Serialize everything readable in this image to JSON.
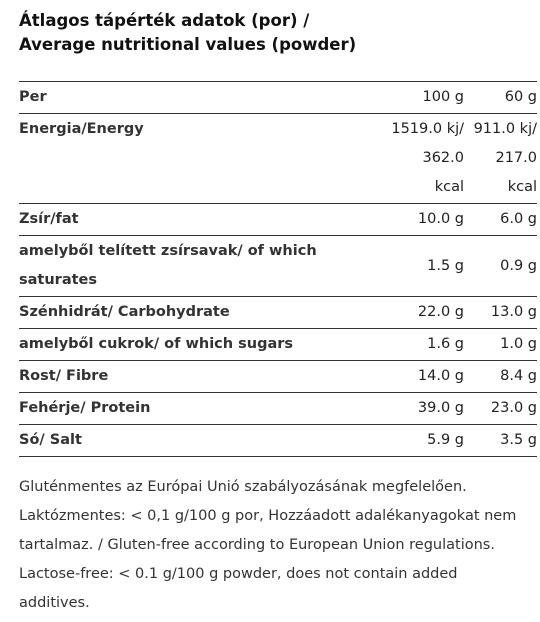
{
  "header": {
    "title_lines": [
      "Átlagos tápérték adatok (por) /",
      "Average nutritional values (powder)"
    ]
  },
  "table": {
    "rows": [
      {
        "label": "Per",
        "cells": [
          [
            "100 g"
          ],
          [
            "60 g"
          ]
        ]
      },
      {
        "label": "Energia/Energy",
        "cells": [
          [
            "1519.0 kj/",
            "362.0",
            "kcal"
          ],
          [
            "911.0 kj/",
            "217.0",
            "kcal"
          ]
        ]
      },
      {
        "label": "Zsír/fat",
        "cells": [
          [
            "10.0 g"
          ],
          [
            "6.0 g"
          ]
        ]
      },
      {
        "label": "amelyből telített zsírsavak/ of which saturates",
        "cells": [
          [
            "1.5 g"
          ],
          [
            "0.9 g"
          ]
        ]
      },
      {
        "label": "Szénhidrát/ Carbohydrate",
        "cells": [
          [
            "22.0 g"
          ],
          [
            "13.0 g"
          ]
        ]
      },
      {
        "label": "amelyből cukrok/ of which sugars",
        "cells": [
          [
            "1.6 g"
          ],
          [
            "1.0 g"
          ]
        ]
      },
      {
        "label": "Rost/ Fibre",
        "cells": [
          [
            "14.0 g"
          ],
          [
            "8.4 g"
          ]
        ]
      },
      {
        "label": "Fehérje/ Protein",
        "cells": [
          [
            "39.0 g"
          ],
          [
            "23.0 g"
          ]
        ]
      },
      {
        "label": "Só/ Salt",
        "cells": [
          [
            "5.9 g"
          ],
          [
            "3.5 g"
          ]
        ]
      }
    ]
  },
  "note": "Gluténmentes az Európai Unió szabályozásának megfelelően. Laktózmentes: < 0,1 g/100 g por, Hozzáadott adalékanyagokat nem tartalmaz. / Gluten-free according to European Union regulations. Lactose-free: < 0.1 g/100 g powder, does not contain added additives."
}
